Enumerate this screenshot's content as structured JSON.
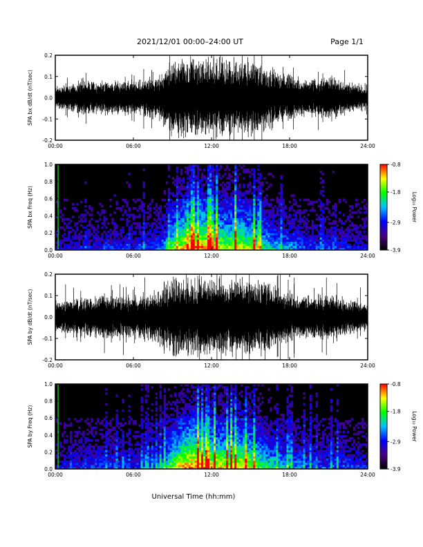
{
  "header": {
    "title": "2021/12/01  00:00–24:00 UT",
    "page": "Page 1/1"
  },
  "colorbar": {
    "label": "Log₁₀ Power",
    "ticks": [
      "-0.8",
      "-1.8",
      "-2.9",
      "-3.9"
    ],
    "range": [
      -3.9,
      -0.8
    ],
    "colors": [
      "#000000",
      "#4b0082",
      "#0000ff",
      "#00bfff",
      "#00ff00",
      "#ffff00",
      "#ff0000"
    ]
  },
  "chart_data": [
    {
      "type": "line",
      "name": "panel-bx-waveform",
      "ylabel": "SPA bx dB/dt (nT/sec)",
      "xlabel": "",
      "xticks": [
        "00:00",
        "06:00",
        "12:00",
        "18:00",
        "24:00"
      ],
      "yticks": [
        "0.2",
        "0.1",
        "0.0",
        "-0.1",
        "-0.2"
      ],
      "xlim": [
        0,
        24
      ],
      "ylim": [
        -0.2,
        0.2
      ],
      "envelope_hours": [
        0,
        2,
        4,
        6,
        8,
        9,
        10,
        11,
        12,
        13,
        14,
        15,
        16,
        17,
        18,
        19,
        20,
        21,
        22,
        23,
        24
      ],
      "envelope_amplitude": [
        0.06,
        0.08,
        0.09,
        0.08,
        0.12,
        0.2,
        0.2,
        0.2,
        0.2,
        0.2,
        0.2,
        0.19,
        0.18,
        0.14,
        0.12,
        0.1,
        0.1,
        0.11,
        0.09,
        0.07,
        0.07
      ]
    },
    {
      "type": "heatmap",
      "name": "panel-bx-spectrogram",
      "ylabel": "SPA bx Freq (Hz)",
      "xlabel": "",
      "xticks": [
        "00:00",
        "06:00",
        "12:00",
        "18:00",
        "24:00"
      ],
      "yticks": [
        "1.0",
        "0.8",
        "0.6",
        "0.4",
        "0.2",
        "0.0"
      ],
      "xlim": [
        0,
        24
      ],
      "ylim": [
        0,
        1
      ],
      "activity_hours": [
        0,
        2,
        4,
        6,
        8,
        9,
        10,
        11,
        12,
        13,
        14,
        15,
        16,
        17,
        18,
        19,
        20,
        21,
        22,
        23,
        24
      ],
      "activity_level": [
        0.15,
        0.25,
        0.3,
        0.25,
        0.35,
        0.7,
        0.9,
        1.0,
        0.85,
        0.8,
        0.85,
        0.75,
        0.6,
        0.5,
        0.45,
        0.35,
        0.3,
        0.3,
        0.3,
        0.25,
        0.2
      ]
    },
    {
      "type": "line",
      "name": "panel-by-waveform",
      "ylabel": "SPA by dB/dt (nT/sec)",
      "xlabel": "",
      "xticks": [
        "00:00",
        "06:00",
        "12:00",
        "18:00",
        "24:00"
      ],
      "yticks": [
        "0.2",
        "0.1",
        "0.0",
        "-0.1",
        "-0.2"
      ],
      "xlim": [
        0,
        24
      ],
      "ylim": [
        -0.2,
        0.2
      ],
      "envelope_hours": [
        0,
        2,
        4,
        6,
        8,
        9,
        10,
        11,
        12,
        13,
        14,
        15,
        16,
        17,
        18,
        19,
        20,
        21,
        22,
        23,
        24
      ],
      "envelope_amplitude": [
        0.08,
        0.1,
        0.11,
        0.1,
        0.14,
        0.2,
        0.2,
        0.2,
        0.2,
        0.2,
        0.2,
        0.2,
        0.19,
        0.15,
        0.13,
        0.11,
        0.11,
        0.12,
        0.1,
        0.08,
        0.08
      ]
    },
    {
      "type": "heatmap",
      "name": "panel-by-spectrogram",
      "ylabel": "SPA by Freq (Hz)",
      "xlabel": "Universal Time (hh:mm)",
      "xticks": [
        "00:00",
        "06:00",
        "12:00",
        "18:00",
        "24:00"
      ],
      "yticks": [
        "1.0",
        "0.8",
        "0.6",
        "0.4",
        "0.2",
        "0.0"
      ],
      "xlim": [
        0,
        24
      ],
      "ylim": [
        0,
        1
      ],
      "activity_hours": [
        0,
        2,
        4,
        6,
        8,
        9,
        10,
        11,
        12,
        13,
        14,
        15,
        16,
        17,
        18,
        19,
        20,
        21,
        22,
        23,
        24
      ],
      "activity_level": [
        0.2,
        0.3,
        0.35,
        0.3,
        0.4,
        0.75,
        0.95,
        1.0,
        0.9,
        0.85,
        0.9,
        0.8,
        0.65,
        0.55,
        0.5,
        0.4,
        0.35,
        0.35,
        0.35,
        0.3,
        0.25
      ]
    }
  ]
}
